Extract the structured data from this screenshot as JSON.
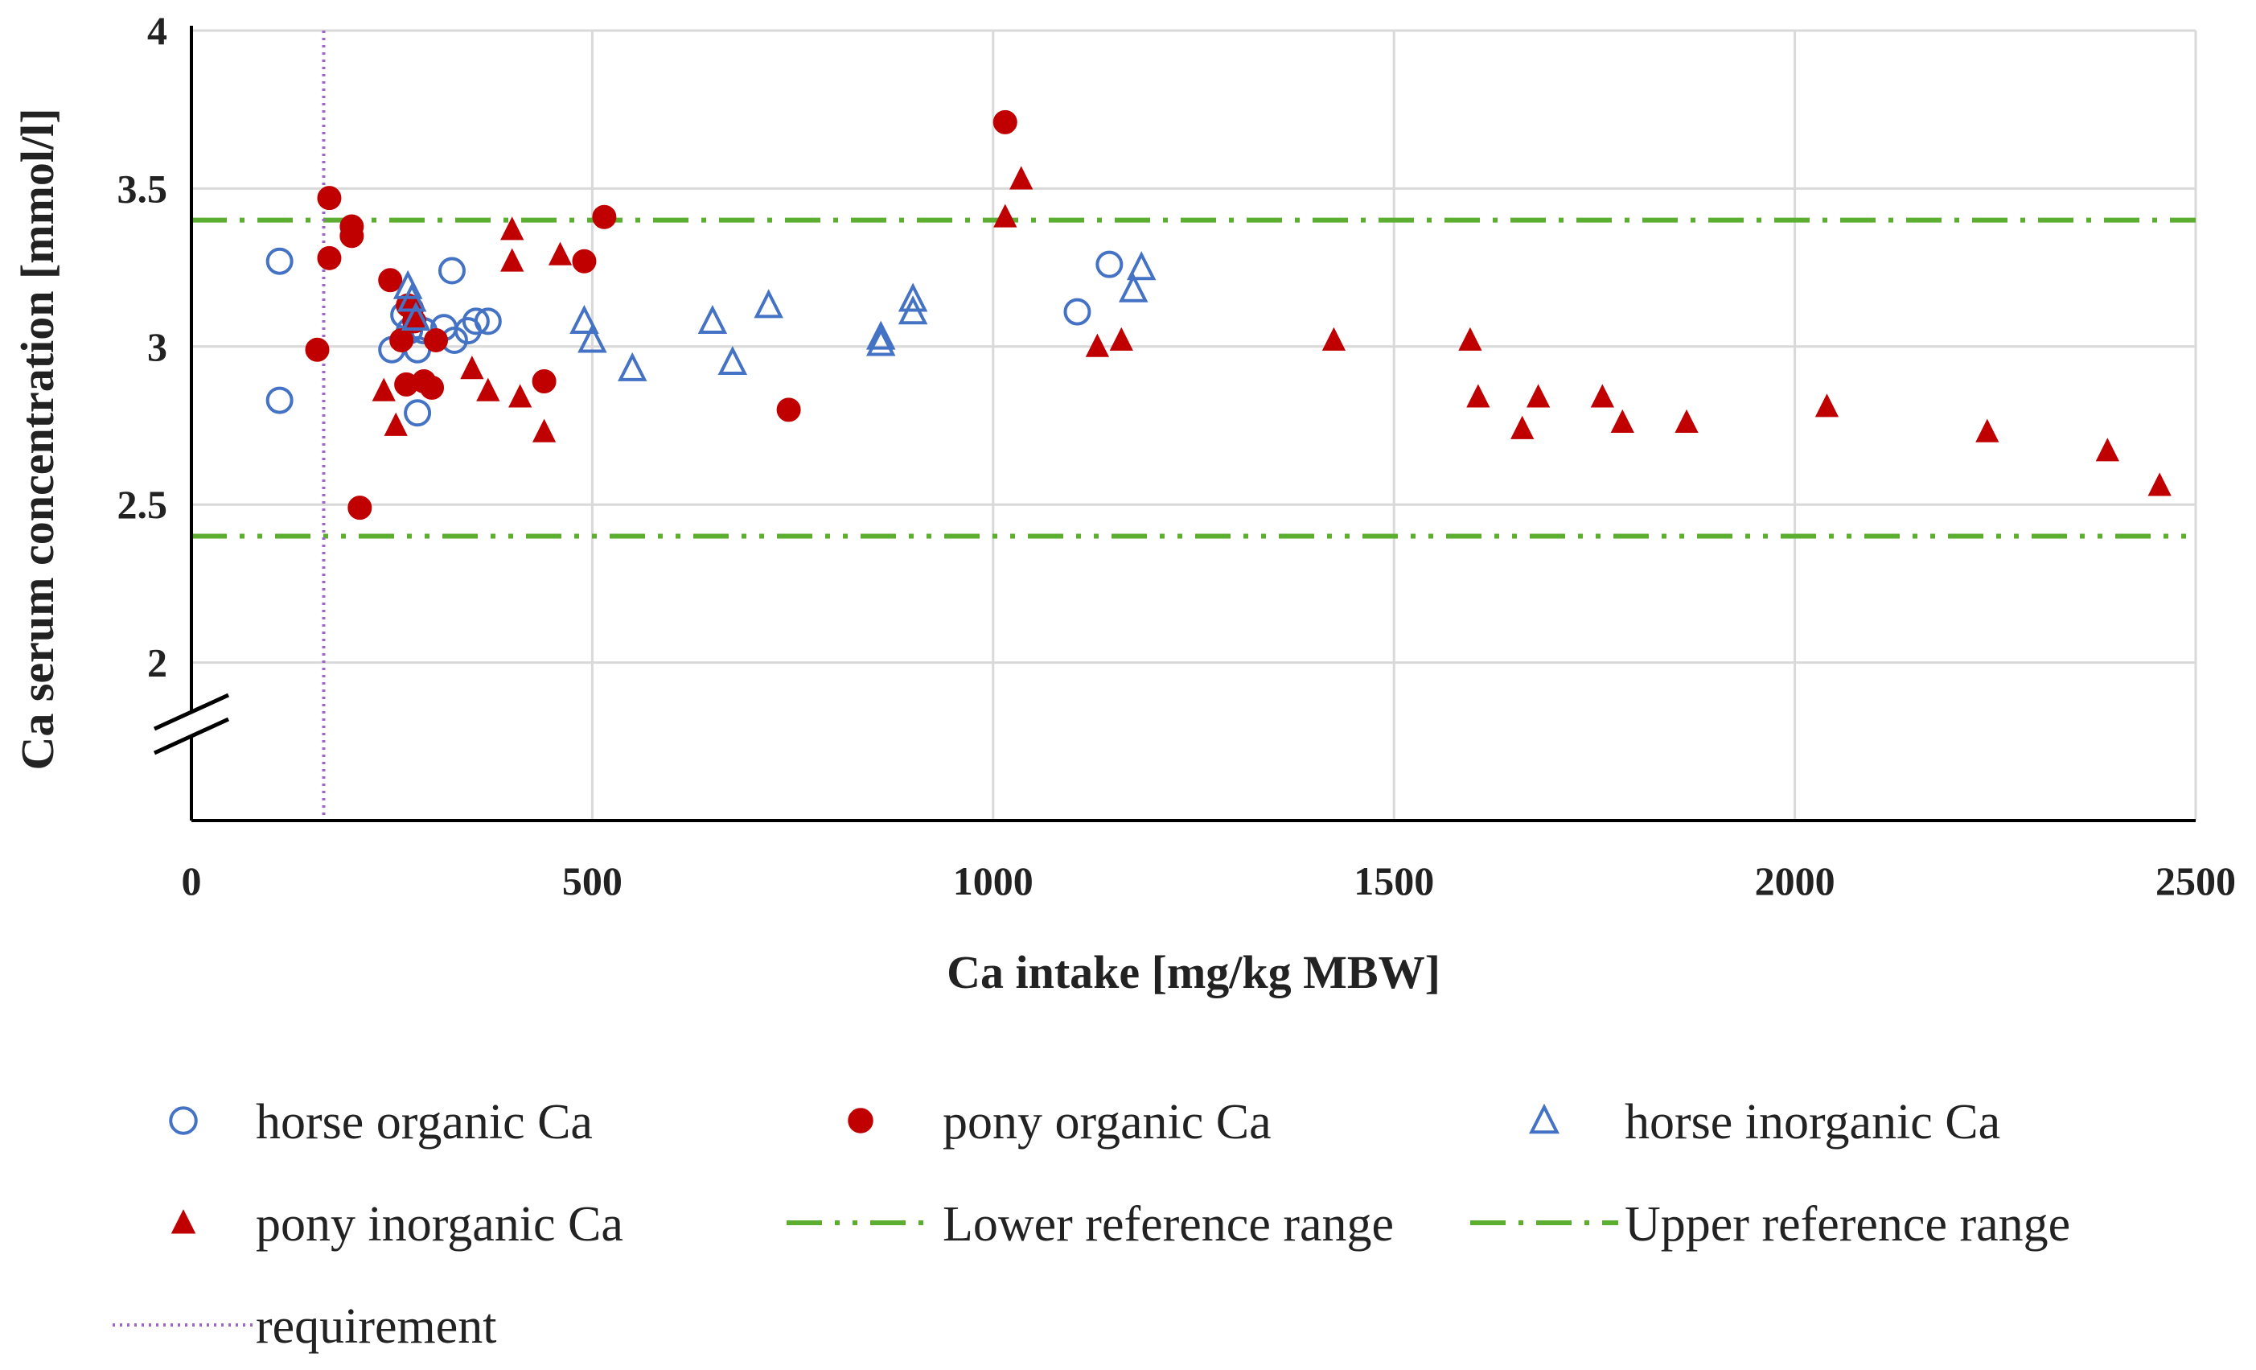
{
  "chart_data": {
    "type": "scatter",
    "xlabel": "Ca intake [mg/kg MBW]",
    "ylabel": "Ca serum concentration [mmol/l]",
    "xlim": [
      0,
      2500
    ],
    "ylim_plotted": [
      1.5,
      4
    ],
    "axis_break_below": 2,
    "grid": true,
    "x_ticks": [
      0,
      500,
      1000,
      1500,
      2000,
      2500
    ],
    "y_ticks": [
      2,
      2.5,
      3,
      3.5,
      4
    ],
    "x_tick_labels": [
      "0",
      "500",
      "1000",
      "1500",
      "2000",
      "2500"
    ],
    "y_tick_labels": [
      "2",
      "2.5",
      "3",
      "3.5",
      "4"
    ],
    "colors": {
      "blue": "#4472C4",
      "red": "#C00000",
      "green": "#5BAE2F",
      "purple": "#9E66CC",
      "grid": "#D9D9D9"
    },
    "series": [
      {
        "name": "horse organic Ca",
        "marker": "open-circle",
        "color": "#4472C4",
        "points": [
          [
            110,
            3.27
          ],
          [
            110,
            2.83
          ],
          [
            250,
            2.99
          ],
          [
            265,
            3.1
          ],
          [
            272,
            3.05
          ],
          [
            282,
            2.99
          ],
          [
            282,
            2.79
          ],
          [
            290,
            3.05
          ],
          [
            315,
            3.06
          ],
          [
            325,
            3.24
          ],
          [
            328,
            3.02
          ],
          [
            345,
            3.05
          ],
          [
            355,
            3.08
          ],
          [
            370,
            3.08
          ],
          [
            1105,
            3.11
          ],
          [
            1145,
            3.26
          ]
        ]
      },
      {
        "name": "pony organic Ca",
        "marker": "filled-circle",
        "color": "#C00000",
        "points": [
          [
            157,
            2.99
          ],
          [
            172,
            3.47
          ],
          [
            172,
            3.28
          ],
          [
            200,
            3.38
          ],
          [
            200,
            3.35
          ],
          [
            210,
            2.49
          ],
          [
            248,
            3.21
          ],
          [
            262,
            3.02
          ],
          [
            268,
            2.88
          ],
          [
            270,
            3.13
          ],
          [
            275,
            3.12
          ],
          [
            278,
            3.08
          ],
          [
            290,
            2.89
          ],
          [
            300,
            2.87
          ],
          [
            305,
            3.02
          ],
          [
            440,
            2.89
          ],
          [
            490,
            3.27
          ],
          [
            515,
            3.41
          ],
          [
            745,
            2.8
          ],
          [
            1015,
            3.71
          ]
        ]
      },
      {
        "name": "horse inorganic Ca",
        "marker": "open-triangle",
        "color": "#4472C4",
        "points": [
          [
            270,
            3.19
          ],
          [
            275,
            3.15
          ],
          [
            280,
            3.09
          ],
          [
            490,
            3.08
          ],
          [
            500,
            3.02
          ],
          [
            550,
            2.93
          ],
          [
            650,
            3.08
          ],
          [
            675,
            2.95
          ],
          [
            720,
            3.13
          ],
          [
            860,
            3.03
          ],
          [
            860,
            3.01
          ],
          [
            900,
            3.15
          ],
          [
            900,
            3.11
          ],
          [
            1175,
            3.18
          ],
          [
            1185,
            3.25
          ]
        ]
      },
      {
        "name": "pony inorganic Ca",
        "marker": "filled-triangle",
        "color": "#C00000",
        "points": [
          [
            240,
            2.86
          ],
          [
            255,
            2.75
          ],
          [
            350,
            2.93
          ],
          [
            370,
            2.86
          ],
          [
            400,
            3.37
          ],
          [
            400,
            3.27
          ],
          [
            410,
            2.84
          ],
          [
            440,
            2.73
          ],
          [
            460,
            3.29
          ],
          [
            1015,
            3.41
          ],
          [
            1035,
            3.53
          ],
          [
            1130,
            3.0
          ],
          [
            1160,
            3.02
          ],
          [
            1425,
            3.02
          ],
          [
            1595,
            3.02
          ],
          [
            1605,
            2.84
          ],
          [
            1660,
            2.74
          ],
          [
            1680,
            2.84
          ],
          [
            1760,
            2.84
          ],
          [
            1785,
            2.76
          ],
          [
            1865,
            2.76
          ],
          [
            2040,
            2.81
          ],
          [
            2240,
            2.73
          ],
          [
            2390,
            2.67
          ],
          [
            2455,
            2.56
          ]
        ]
      }
    ],
    "reference_lines": [
      {
        "name": "Lower reference range",
        "orientation": "horizontal",
        "value": 2.4,
        "style": "dash-dot-dot",
        "color": "#5BAE2F"
      },
      {
        "name": "Upper reference range",
        "orientation": "horizontal",
        "value": 3.4,
        "style": "dash-dot",
        "color": "#5BAE2F"
      },
      {
        "name": "requirement",
        "orientation": "vertical",
        "value": 165,
        "style": "dotted",
        "color": "#9E66CC"
      }
    ],
    "legend": {
      "placement": "bottom",
      "entries": [
        {
          "label": "horse organic Ca",
          "symbol": "open-circle"
        },
        {
          "label": "pony organic Ca",
          "symbol": "filled-circle"
        },
        {
          "label": "horse inorganic Ca",
          "symbol": "open-triangle"
        },
        {
          "label": "pony inorganic Ca",
          "symbol": "filled-triangle"
        },
        {
          "label": "Lower reference range",
          "symbol": "dash-dot-dot"
        },
        {
          "label": "Upper reference range",
          "symbol": "dash-dot"
        },
        {
          "label": "requirement",
          "symbol": "dotted"
        }
      ]
    }
  }
}
